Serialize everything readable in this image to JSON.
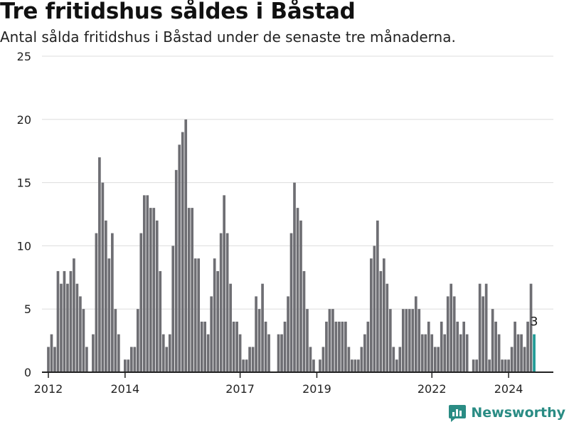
{
  "title": "Tre fritidshus såldes i Båstad",
  "subtitle": "Antal sålda fritidshus i Båstad under de senaste tre månaderna.",
  "brand": {
    "name": "Newsworthy",
    "color": "#2a8c84"
  },
  "colors": {
    "bar": "#6e6e73",
    "highlight": "#1f9a95",
    "grid": "#dddddd",
    "axis": "#222222"
  },
  "chart_data": {
    "type": "bar",
    "x_start": "2011-11",
    "x_end": "2025-03",
    "ylim": [
      0,
      25
    ],
    "yticks": [
      0,
      5,
      10,
      15,
      20,
      25
    ],
    "xtick_labels": [
      {
        "label": "2012",
        "date": "2012-01"
      },
      {
        "label": "2014",
        "date": "2014-01"
      },
      {
        "label": "2017",
        "date": "2017-01"
      },
      {
        "label": "2019",
        "date": "2019-01"
      },
      {
        "label": "2022",
        "date": "2022-01"
      },
      {
        "label": "2024",
        "date": "2024-01"
      }
    ],
    "grid": true,
    "annotation": {
      "date": "2024-09",
      "label": "3"
    },
    "points": [
      {
        "date": "2012-01",
        "value": 2
      },
      {
        "date": "2012-02",
        "value": 3
      },
      {
        "date": "2012-03",
        "value": 2
      },
      {
        "date": "2012-04",
        "value": 8
      },
      {
        "date": "2012-05",
        "value": 7
      },
      {
        "date": "2012-06",
        "value": 8
      },
      {
        "date": "2012-07",
        "value": 7
      },
      {
        "date": "2012-08",
        "value": 8
      },
      {
        "date": "2012-09",
        "value": 9
      },
      {
        "date": "2012-10",
        "value": 7
      },
      {
        "date": "2012-11",
        "value": 6
      },
      {
        "date": "2012-12",
        "value": 5
      },
      {
        "date": "2013-01",
        "value": 2
      },
      {
        "date": "2013-02",
        "value": 0
      },
      {
        "date": "2013-03",
        "value": 3
      },
      {
        "date": "2013-04",
        "value": 11
      },
      {
        "date": "2013-05",
        "value": 17
      },
      {
        "date": "2013-06",
        "value": 15
      },
      {
        "date": "2013-07",
        "value": 12
      },
      {
        "date": "2013-08",
        "value": 9
      },
      {
        "date": "2013-09",
        "value": 11
      },
      {
        "date": "2013-10",
        "value": 5
      },
      {
        "date": "2013-11",
        "value": 3
      },
      {
        "date": "2013-12",
        "value": 0
      },
      {
        "date": "2014-01",
        "value": 1
      },
      {
        "date": "2014-02",
        "value": 1
      },
      {
        "date": "2014-03",
        "value": 2
      },
      {
        "date": "2014-04",
        "value": 2
      },
      {
        "date": "2014-05",
        "value": 5
      },
      {
        "date": "2014-06",
        "value": 11
      },
      {
        "date": "2014-07",
        "value": 14
      },
      {
        "date": "2014-08",
        "value": 14
      },
      {
        "date": "2014-09",
        "value": 13
      },
      {
        "date": "2014-10",
        "value": 13
      },
      {
        "date": "2014-11",
        "value": 12
      },
      {
        "date": "2014-12",
        "value": 8
      },
      {
        "date": "2015-01",
        "value": 3
      },
      {
        "date": "2015-02",
        "value": 2
      },
      {
        "date": "2015-03",
        "value": 3
      },
      {
        "date": "2015-04",
        "value": 10
      },
      {
        "date": "2015-05",
        "value": 16
      },
      {
        "date": "2015-06",
        "value": 18
      },
      {
        "date": "2015-07",
        "value": 19
      },
      {
        "date": "2015-08",
        "value": 20
      },
      {
        "date": "2015-09",
        "value": 13
      },
      {
        "date": "2015-10",
        "value": 13
      },
      {
        "date": "2015-11",
        "value": 9
      },
      {
        "date": "2015-12",
        "value": 9
      },
      {
        "date": "2016-01",
        "value": 4
      },
      {
        "date": "2016-02",
        "value": 4
      },
      {
        "date": "2016-03",
        "value": 3
      },
      {
        "date": "2016-04",
        "value": 6
      },
      {
        "date": "2016-05",
        "value": 9
      },
      {
        "date": "2016-06",
        "value": 8
      },
      {
        "date": "2016-07",
        "value": 11
      },
      {
        "date": "2016-08",
        "value": 14
      },
      {
        "date": "2016-09",
        "value": 11
      },
      {
        "date": "2016-10",
        "value": 7
      },
      {
        "date": "2016-11",
        "value": 4
      },
      {
        "date": "2016-12",
        "value": 4
      },
      {
        "date": "2017-01",
        "value": 3
      },
      {
        "date": "2017-02",
        "value": 1
      },
      {
        "date": "2017-03",
        "value": 1
      },
      {
        "date": "2017-04",
        "value": 2
      },
      {
        "date": "2017-05",
        "value": 2
      },
      {
        "date": "2017-06",
        "value": 6
      },
      {
        "date": "2017-07",
        "value": 5
      },
      {
        "date": "2017-08",
        "value": 7
      },
      {
        "date": "2017-09",
        "value": 4
      },
      {
        "date": "2017-10",
        "value": 3
      },
      {
        "date": "2017-11",
        "value": 0
      },
      {
        "date": "2017-12",
        "value": 0
      },
      {
        "date": "2018-01",
        "value": 3
      },
      {
        "date": "2018-02",
        "value": 3
      },
      {
        "date": "2018-03",
        "value": 4
      },
      {
        "date": "2018-04",
        "value": 6
      },
      {
        "date": "2018-05",
        "value": 11
      },
      {
        "date": "2018-06",
        "value": 15
      },
      {
        "date": "2018-07",
        "value": 13
      },
      {
        "date": "2018-08",
        "value": 12
      },
      {
        "date": "2018-09",
        "value": 8
      },
      {
        "date": "2018-10",
        "value": 5
      },
      {
        "date": "2018-11",
        "value": 2
      },
      {
        "date": "2018-12",
        "value": 1
      },
      {
        "date": "2019-01",
        "value": 0
      },
      {
        "date": "2019-02",
        "value": 1
      },
      {
        "date": "2019-03",
        "value": 2
      },
      {
        "date": "2019-04",
        "value": 4
      },
      {
        "date": "2019-05",
        "value": 5
      },
      {
        "date": "2019-06",
        "value": 5
      },
      {
        "date": "2019-07",
        "value": 4
      },
      {
        "date": "2019-08",
        "value": 4
      },
      {
        "date": "2019-09",
        "value": 4
      },
      {
        "date": "2019-10",
        "value": 4
      },
      {
        "date": "2019-11",
        "value": 2
      },
      {
        "date": "2019-12",
        "value": 1
      },
      {
        "date": "2020-01",
        "value": 1
      },
      {
        "date": "2020-02",
        "value": 1
      },
      {
        "date": "2020-03",
        "value": 2
      },
      {
        "date": "2020-04",
        "value": 3
      },
      {
        "date": "2020-05",
        "value": 4
      },
      {
        "date": "2020-06",
        "value": 9
      },
      {
        "date": "2020-07",
        "value": 10
      },
      {
        "date": "2020-08",
        "value": 12
      },
      {
        "date": "2020-09",
        "value": 8
      },
      {
        "date": "2020-10",
        "value": 9
      },
      {
        "date": "2020-11",
        "value": 7
      },
      {
        "date": "2020-12",
        "value": 5
      },
      {
        "date": "2021-01",
        "value": 2
      },
      {
        "date": "2021-02",
        "value": 1
      },
      {
        "date": "2021-03",
        "value": 2
      },
      {
        "date": "2021-04",
        "value": 5
      },
      {
        "date": "2021-05",
        "value": 5
      },
      {
        "date": "2021-06",
        "value": 5
      },
      {
        "date": "2021-07",
        "value": 5
      },
      {
        "date": "2021-08",
        "value": 6
      },
      {
        "date": "2021-09",
        "value": 5
      },
      {
        "date": "2021-10",
        "value": 3
      },
      {
        "date": "2021-11",
        "value": 3
      },
      {
        "date": "2021-12",
        "value": 4
      },
      {
        "date": "2022-01",
        "value": 3
      },
      {
        "date": "2022-02",
        "value": 2
      },
      {
        "date": "2022-03",
        "value": 2
      },
      {
        "date": "2022-04",
        "value": 4
      },
      {
        "date": "2022-05",
        "value": 3
      },
      {
        "date": "2022-06",
        "value": 6
      },
      {
        "date": "2022-07",
        "value": 7
      },
      {
        "date": "2022-08",
        "value": 6
      },
      {
        "date": "2022-09",
        "value": 4
      },
      {
        "date": "2022-10",
        "value": 3
      },
      {
        "date": "2022-11",
        "value": 4
      },
      {
        "date": "2022-12",
        "value": 3
      },
      {
        "date": "2023-01",
        "value": 0
      },
      {
        "date": "2023-02",
        "value": 1
      },
      {
        "date": "2023-03",
        "value": 1
      },
      {
        "date": "2023-04",
        "value": 7
      },
      {
        "date": "2023-05",
        "value": 6
      },
      {
        "date": "2023-06",
        "value": 7
      },
      {
        "date": "2023-07",
        "value": 1
      },
      {
        "date": "2023-08",
        "value": 5
      },
      {
        "date": "2023-09",
        "value": 4
      },
      {
        "date": "2023-10",
        "value": 3
      },
      {
        "date": "2023-11",
        "value": 1
      },
      {
        "date": "2023-12",
        "value": 1
      },
      {
        "date": "2024-01",
        "value": 1
      },
      {
        "date": "2024-02",
        "value": 2
      },
      {
        "date": "2024-03",
        "value": 4
      },
      {
        "date": "2024-04",
        "value": 3
      },
      {
        "date": "2024-05",
        "value": 3
      },
      {
        "date": "2024-06",
        "value": 2
      },
      {
        "date": "2024-07",
        "value": 4
      },
      {
        "date": "2024-08",
        "value": 7
      },
      {
        "date": "2024-09",
        "value": 3
      }
    ]
  }
}
